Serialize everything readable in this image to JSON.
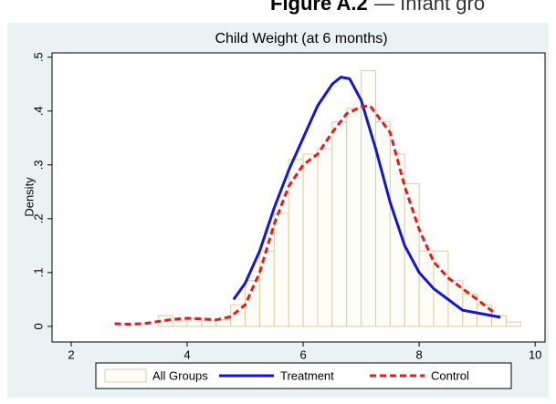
{
  "header": {
    "label": "Figure A.2",
    "caption": "— Infant gro"
  },
  "chart_data": {
    "type": "histogram",
    "title": "Child Weight (at 6 months)",
    "ylabel": "Density",
    "name": "All Groups",
    "color": "#fdfdf8",
    "edge_color": "#dccd9c",
    "bins": [
      3.5,
      3.75,
      4.0,
      4.25,
      4.5,
      4.75,
      5.0,
      5.25,
      5.5,
      5.75,
      6.0,
      6.25,
      6.5,
      6.75,
      7.0,
      7.25,
      7.5,
      7.75,
      8.0,
      8.25,
      8.5,
      8.75,
      9.0,
      9.25,
      9.5,
      9.75
    ],
    "values": [
      0.02,
      0.01,
      0.015,
      0.01,
      0.012,
      0.04,
      0.085,
      0.14,
      0.21,
      0.31,
      0.32,
      0.33,
      0.38,
      0.405,
      0.475,
      0.38,
      0.32,
      0.265,
      0.14,
      0.14,
      0.085,
      0.06,
      0.04,
      0.02,
      0.008
    ],
    "series": [
      {
        "name": "Treatment",
        "color": "#1414d2",
        "dashed": false,
        "x": [
          4.8,
          5.0,
          5.25,
          5.5,
          5.75,
          6.0,
          6.25,
          6.5,
          6.65,
          6.8,
          7.0,
          7.25,
          7.5,
          7.75,
          8.0,
          8.25,
          8.5,
          8.75,
          9.0,
          9.4
        ],
        "values": [
          0.05,
          0.08,
          0.14,
          0.22,
          0.29,
          0.35,
          0.41,
          0.45,
          0.463,
          0.46,
          0.42,
          0.33,
          0.23,
          0.15,
          0.1,
          0.07,
          0.05,
          0.03,
          0.025,
          0.017
        ]
      },
      {
        "name": "Control",
        "color": "#e8191c",
        "dashed": true,
        "x": [
          2.75,
          3.0,
          3.25,
          3.5,
          3.75,
          4.0,
          4.25,
          4.5,
          4.75,
          5.0,
          5.25,
          5.5,
          5.75,
          6.0,
          6.25,
          6.5,
          6.75,
          7.0,
          7.15,
          7.5,
          7.75,
          8.0,
          8.25,
          8.5,
          8.75,
          9.0,
          9.3
        ],
        "values": [
          0.005,
          0.004,
          0.005,
          0.009,
          0.013,
          0.015,
          0.014,
          0.012,
          0.018,
          0.04,
          0.1,
          0.19,
          0.26,
          0.3,
          0.32,
          0.36,
          0.395,
          0.408,
          0.41,
          0.36,
          0.26,
          0.18,
          0.12,
          0.09,
          0.07,
          0.05,
          0.025
        ]
      }
    ],
    "xlim": [
      1.67,
      10.17
    ],
    "ylim": [
      -0.029,
      0.508
    ],
    "xticks": [
      2,
      4,
      6,
      8,
      10
    ],
    "yticks": [
      0,
      {
        "value": 0.1,
        "label": ".1"
      },
      {
        "value": 0.2,
        "label": ".2"
      },
      {
        "value": 0.3,
        "label": ".3"
      },
      {
        "value": 0.4,
        "label": ".4"
      },
      {
        "value": 0.5,
        "label": ".5"
      }
    ],
    "grid": false
  }
}
